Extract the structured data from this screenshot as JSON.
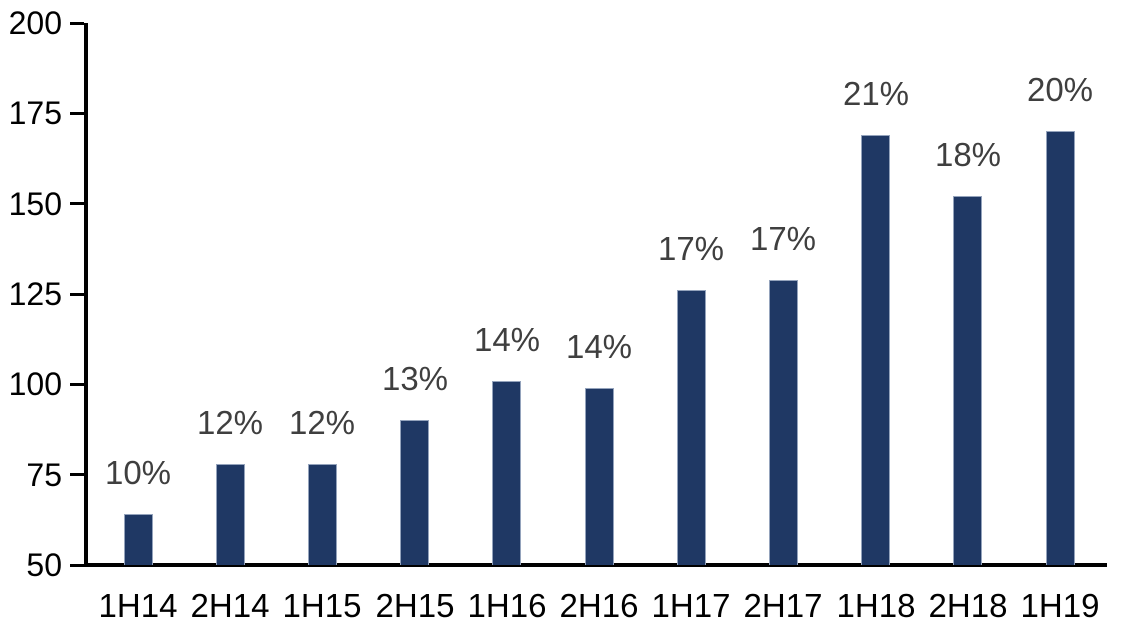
{
  "chart_data": {
    "type": "bar",
    "title": "",
    "xlabel": "",
    "ylabel": "",
    "categories": [
      "1H14",
      "2H14",
      "1H15",
      "2H15",
      "1H16",
      "2H16",
      "1H17",
      "2H17",
      "1H18",
      "2H18",
      "1H19"
    ],
    "values": [
      64,
      78,
      78,
      90,
      101,
      99,
      126,
      129,
      169,
      152,
      170
    ],
    "data_labels": [
      "10%",
      "12%",
      "12%",
      "13%",
      "14%",
      "14%",
      "17%",
      "17%",
      "21%",
      "18%",
      "20%"
    ],
    "ylim": [
      50,
      200
    ],
    "yticks": [
      50,
      75,
      100,
      125,
      150,
      175,
      200
    ],
    "ytick_labels": [
      "50",
      "75",
      "100",
      "125",
      "150",
      "175",
      "200"
    ],
    "grid": false,
    "legend": false,
    "colors": {
      "bar_fill": "#1F3864",
      "bar_border": "#94A3BC",
      "data_label": "#3F3F3F",
      "axis": "#000000",
      "background": "#FFFFFF"
    }
  }
}
